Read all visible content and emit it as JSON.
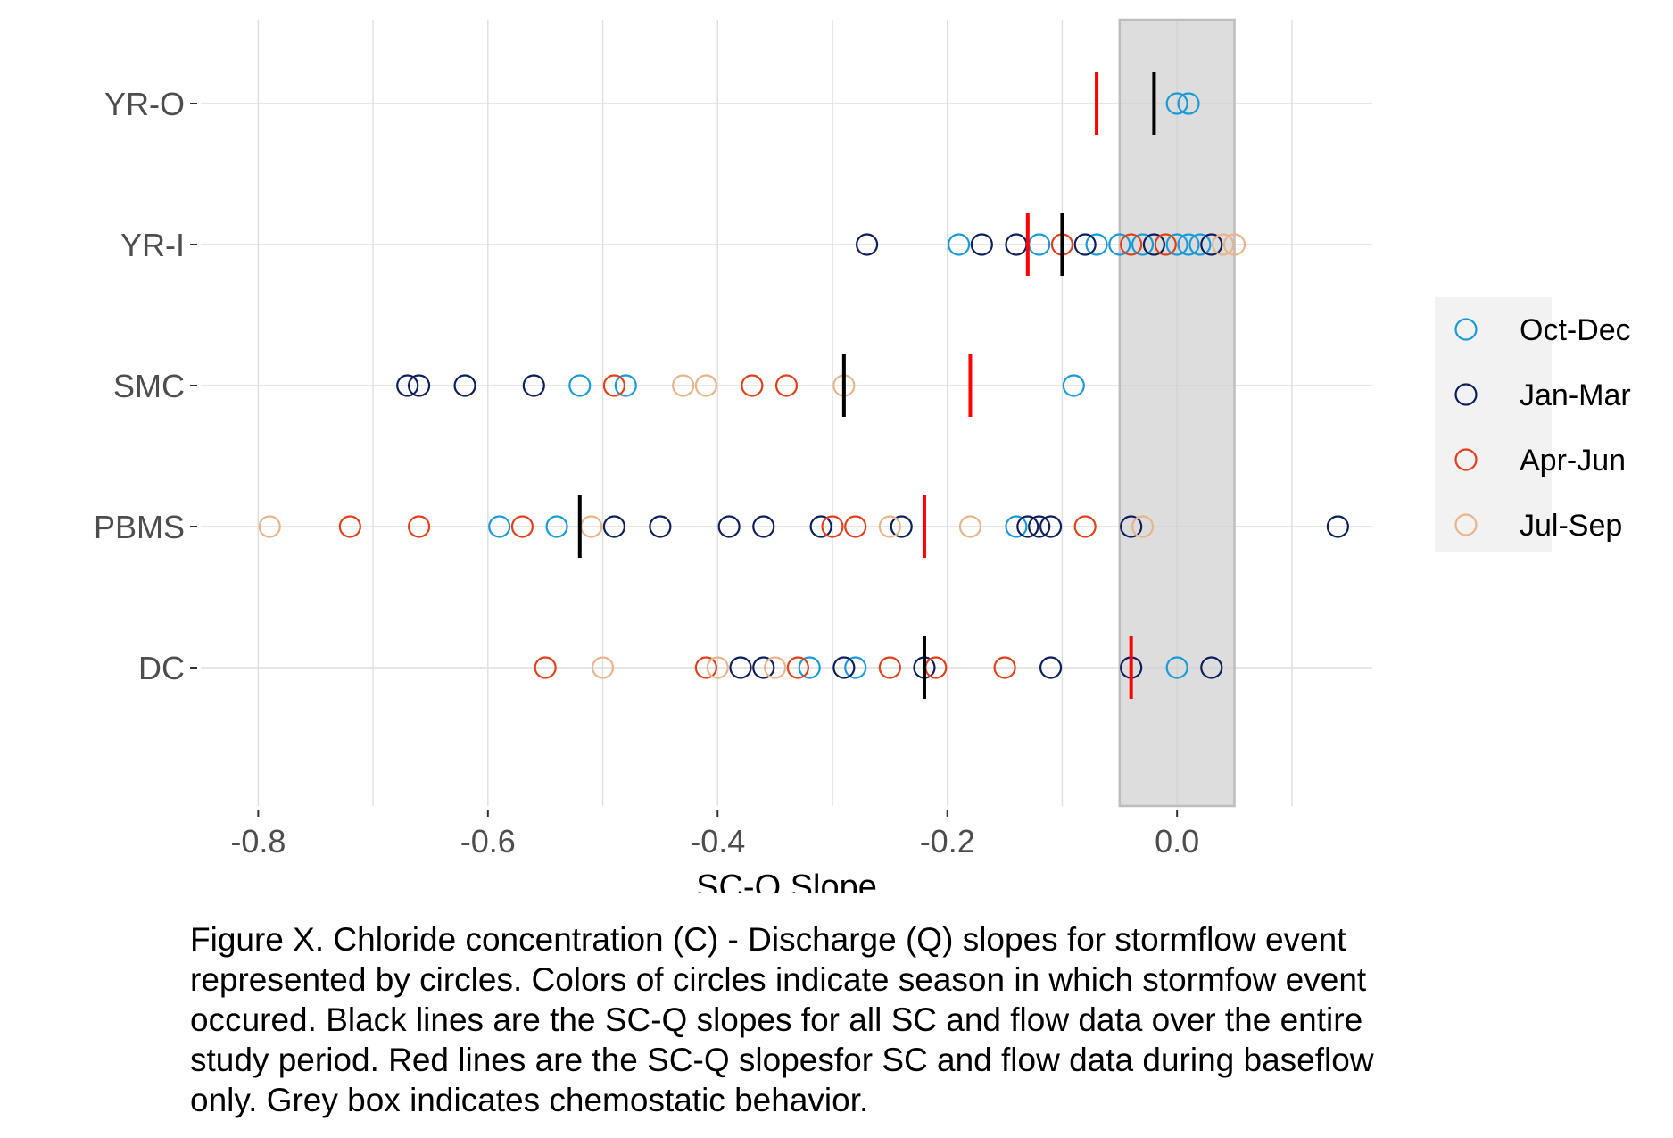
{
  "chart_data": {
    "type": "scatter",
    "xlabel": "SC-Q Slope",
    "ylabel": "",
    "xlim": [
      -0.85,
      0.17
    ],
    "x_ticks": [
      -0.8,
      -0.6,
      -0.4,
      -0.2,
      0.0
    ],
    "x_tick_labels": [
      "-0.8",
      "-0.6",
      "-0.4",
      "-0.2",
      "0.0"
    ],
    "categories": [
      "YR-O",
      "YR-I",
      "SMC",
      "PBMS",
      "DC"
    ],
    "grid": true,
    "legend_position": "right",
    "chemostatic_band": [
      -0.05,
      0.05
    ],
    "season_colors": {
      "Oct-Dec": "#1a9bd7",
      "Jan-Mar": "#0d1f5c",
      "Apr-Jun": "#e0401c",
      "Jul-Sep": "#e8b48c"
    },
    "legend": [
      "Oct-Dec",
      "Jan-Mar",
      "Apr-Jun",
      "Jul-Sep"
    ],
    "series": [
      {
        "name": "Oct-Dec",
        "points": [
          {
            "site": "YR-O",
            "x": 0.0
          },
          {
            "site": "YR-O",
            "x": 0.01
          },
          {
            "site": "YR-I",
            "x": -0.19
          },
          {
            "site": "YR-I",
            "x": -0.12
          },
          {
            "site": "YR-I",
            "x": -0.07
          },
          {
            "site": "YR-I",
            "x": -0.05
          },
          {
            "site": "YR-I",
            "x": -0.03
          },
          {
            "site": "YR-I",
            "x": 0.0
          },
          {
            "site": "YR-I",
            "x": 0.01
          },
          {
            "site": "YR-I",
            "x": 0.02
          },
          {
            "site": "SMC",
            "x": -0.52
          },
          {
            "site": "SMC",
            "x": -0.48
          },
          {
            "site": "SMC",
            "x": -0.09
          },
          {
            "site": "PBMS",
            "x": -0.59
          },
          {
            "site": "PBMS",
            "x": -0.54
          },
          {
            "site": "PBMS",
            "x": -0.14
          },
          {
            "site": "DC",
            "x": -0.32
          },
          {
            "site": "DC",
            "x": -0.28
          },
          {
            "site": "DC",
            "x": 0.0
          }
        ]
      },
      {
        "name": "Jan-Mar",
        "points": [
          {
            "site": "YR-I",
            "x": -0.27
          },
          {
            "site": "YR-I",
            "x": -0.17
          },
          {
            "site": "YR-I",
            "x": -0.14
          },
          {
            "site": "YR-I",
            "x": -0.08
          },
          {
            "site": "YR-I",
            "x": -0.02
          },
          {
            "site": "YR-I",
            "x": 0.03
          },
          {
            "site": "SMC",
            "x": -0.67
          },
          {
            "site": "SMC",
            "x": -0.66
          },
          {
            "site": "SMC",
            "x": -0.62
          },
          {
            "site": "SMC",
            "x": -0.56
          },
          {
            "site": "PBMS",
            "x": -0.49
          },
          {
            "site": "PBMS",
            "x": -0.45
          },
          {
            "site": "PBMS",
            "x": -0.39
          },
          {
            "site": "PBMS",
            "x": -0.36
          },
          {
            "site": "PBMS",
            "x": -0.31
          },
          {
            "site": "PBMS",
            "x": -0.24
          },
          {
            "site": "PBMS",
            "x": -0.13
          },
          {
            "site": "PBMS",
            "x": -0.12
          },
          {
            "site": "PBMS",
            "x": -0.11
          },
          {
            "site": "PBMS",
            "x": -0.04
          },
          {
            "site": "PBMS",
            "x": 0.14
          },
          {
            "site": "DC",
            "x": -0.38
          },
          {
            "site": "DC",
            "x": -0.36
          },
          {
            "site": "DC",
            "x": -0.29
          },
          {
            "site": "DC",
            "x": -0.22
          },
          {
            "site": "DC",
            "x": -0.11
          },
          {
            "site": "DC",
            "x": -0.04
          },
          {
            "site": "DC",
            "x": 0.03
          }
        ]
      },
      {
        "name": "Apr-Jun",
        "points": [
          {
            "site": "YR-I",
            "x": -0.1
          },
          {
            "site": "YR-I",
            "x": -0.04
          },
          {
            "site": "YR-I",
            "x": -0.01
          },
          {
            "site": "SMC",
            "x": -0.49
          },
          {
            "site": "SMC",
            "x": -0.37
          },
          {
            "site": "SMC",
            "x": -0.34
          },
          {
            "site": "PBMS",
            "x": -0.72
          },
          {
            "site": "PBMS",
            "x": -0.66
          },
          {
            "site": "PBMS",
            "x": -0.57
          },
          {
            "site": "PBMS",
            "x": -0.3
          },
          {
            "site": "PBMS",
            "x": -0.28
          },
          {
            "site": "PBMS",
            "x": -0.08
          },
          {
            "site": "DC",
            "x": -0.55
          },
          {
            "site": "DC",
            "x": -0.41
          },
          {
            "site": "DC",
            "x": -0.33
          },
          {
            "site": "DC",
            "x": -0.25
          },
          {
            "site": "DC",
            "x": -0.21
          },
          {
            "site": "DC",
            "x": -0.15
          }
        ]
      },
      {
        "name": "Jul-Sep",
        "points": [
          {
            "site": "YR-I",
            "x": 0.04
          },
          {
            "site": "YR-I",
            "x": 0.05
          },
          {
            "site": "SMC",
            "x": -0.43
          },
          {
            "site": "SMC",
            "x": -0.41
          },
          {
            "site": "SMC",
            "x": -0.29
          },
          {
            "site": "PBMS",
            "x": -0.79
          },
          {
            "site": "PBMS",
            "x": -0.51
          },
          {
            "site": "PBMS",
            "x": -0.25
          },
          {
            "site": "PBMS",
            "x": -0.18
          },
          {
            "site": "PBMS",
            "x": -0.03
          },
          {
            "site": "DC",
            "x": -0.5
          },
          {
            "site": "DC",
            "x": -0.4
          },
          {
            "site": "DC",
            "x": -0.35
          }
        ]
      }
    ],
    "overall_slope_color": "#000000",
    "overall_slope": [
      {
        "site": "YR-O",
        "x": -0.02
      },
      {
        "site": "YR-I",
        "x": -0.1
      },
      {
        "site": "SMC",
        "x": -0.29
      },
      {
        "site": "PBMS",
        "x": -0.52
      },
      {
        "site": "DC",
        "x": -0.22
      }
    ],
    "baseflow_slope_color": "#ff0000",
    "baseflow_slope": [
      {
        "site": "YR-O",
        "x": -0.07
      },
      {
        "site": "YR-I",
        "x": -0.13
      },
      {
        "site": "SMC",
        "x": -0.18
      },
      {
        "site": "PBMS",
        "x": -0.22
      },
      {
        "site": "DC",
        "x": -0.04
      }
    ]
  },
  "caption": {
    "lines": [
      "Figure X. Chloride concentration (C) - Discharge (Q) slopes for stormflow event",
      "represented by circles. Colors of circles indicate season in which stormfow event",
      "occured. Black lines are the SC-Q slopes for all SC and flow data over the entire",
      "study period. Red lines are the SC-Q slopesfor SC and flow data during baseflow",
      "only. Grey box indicates chemostatic behavior."
    ]
  }
}
